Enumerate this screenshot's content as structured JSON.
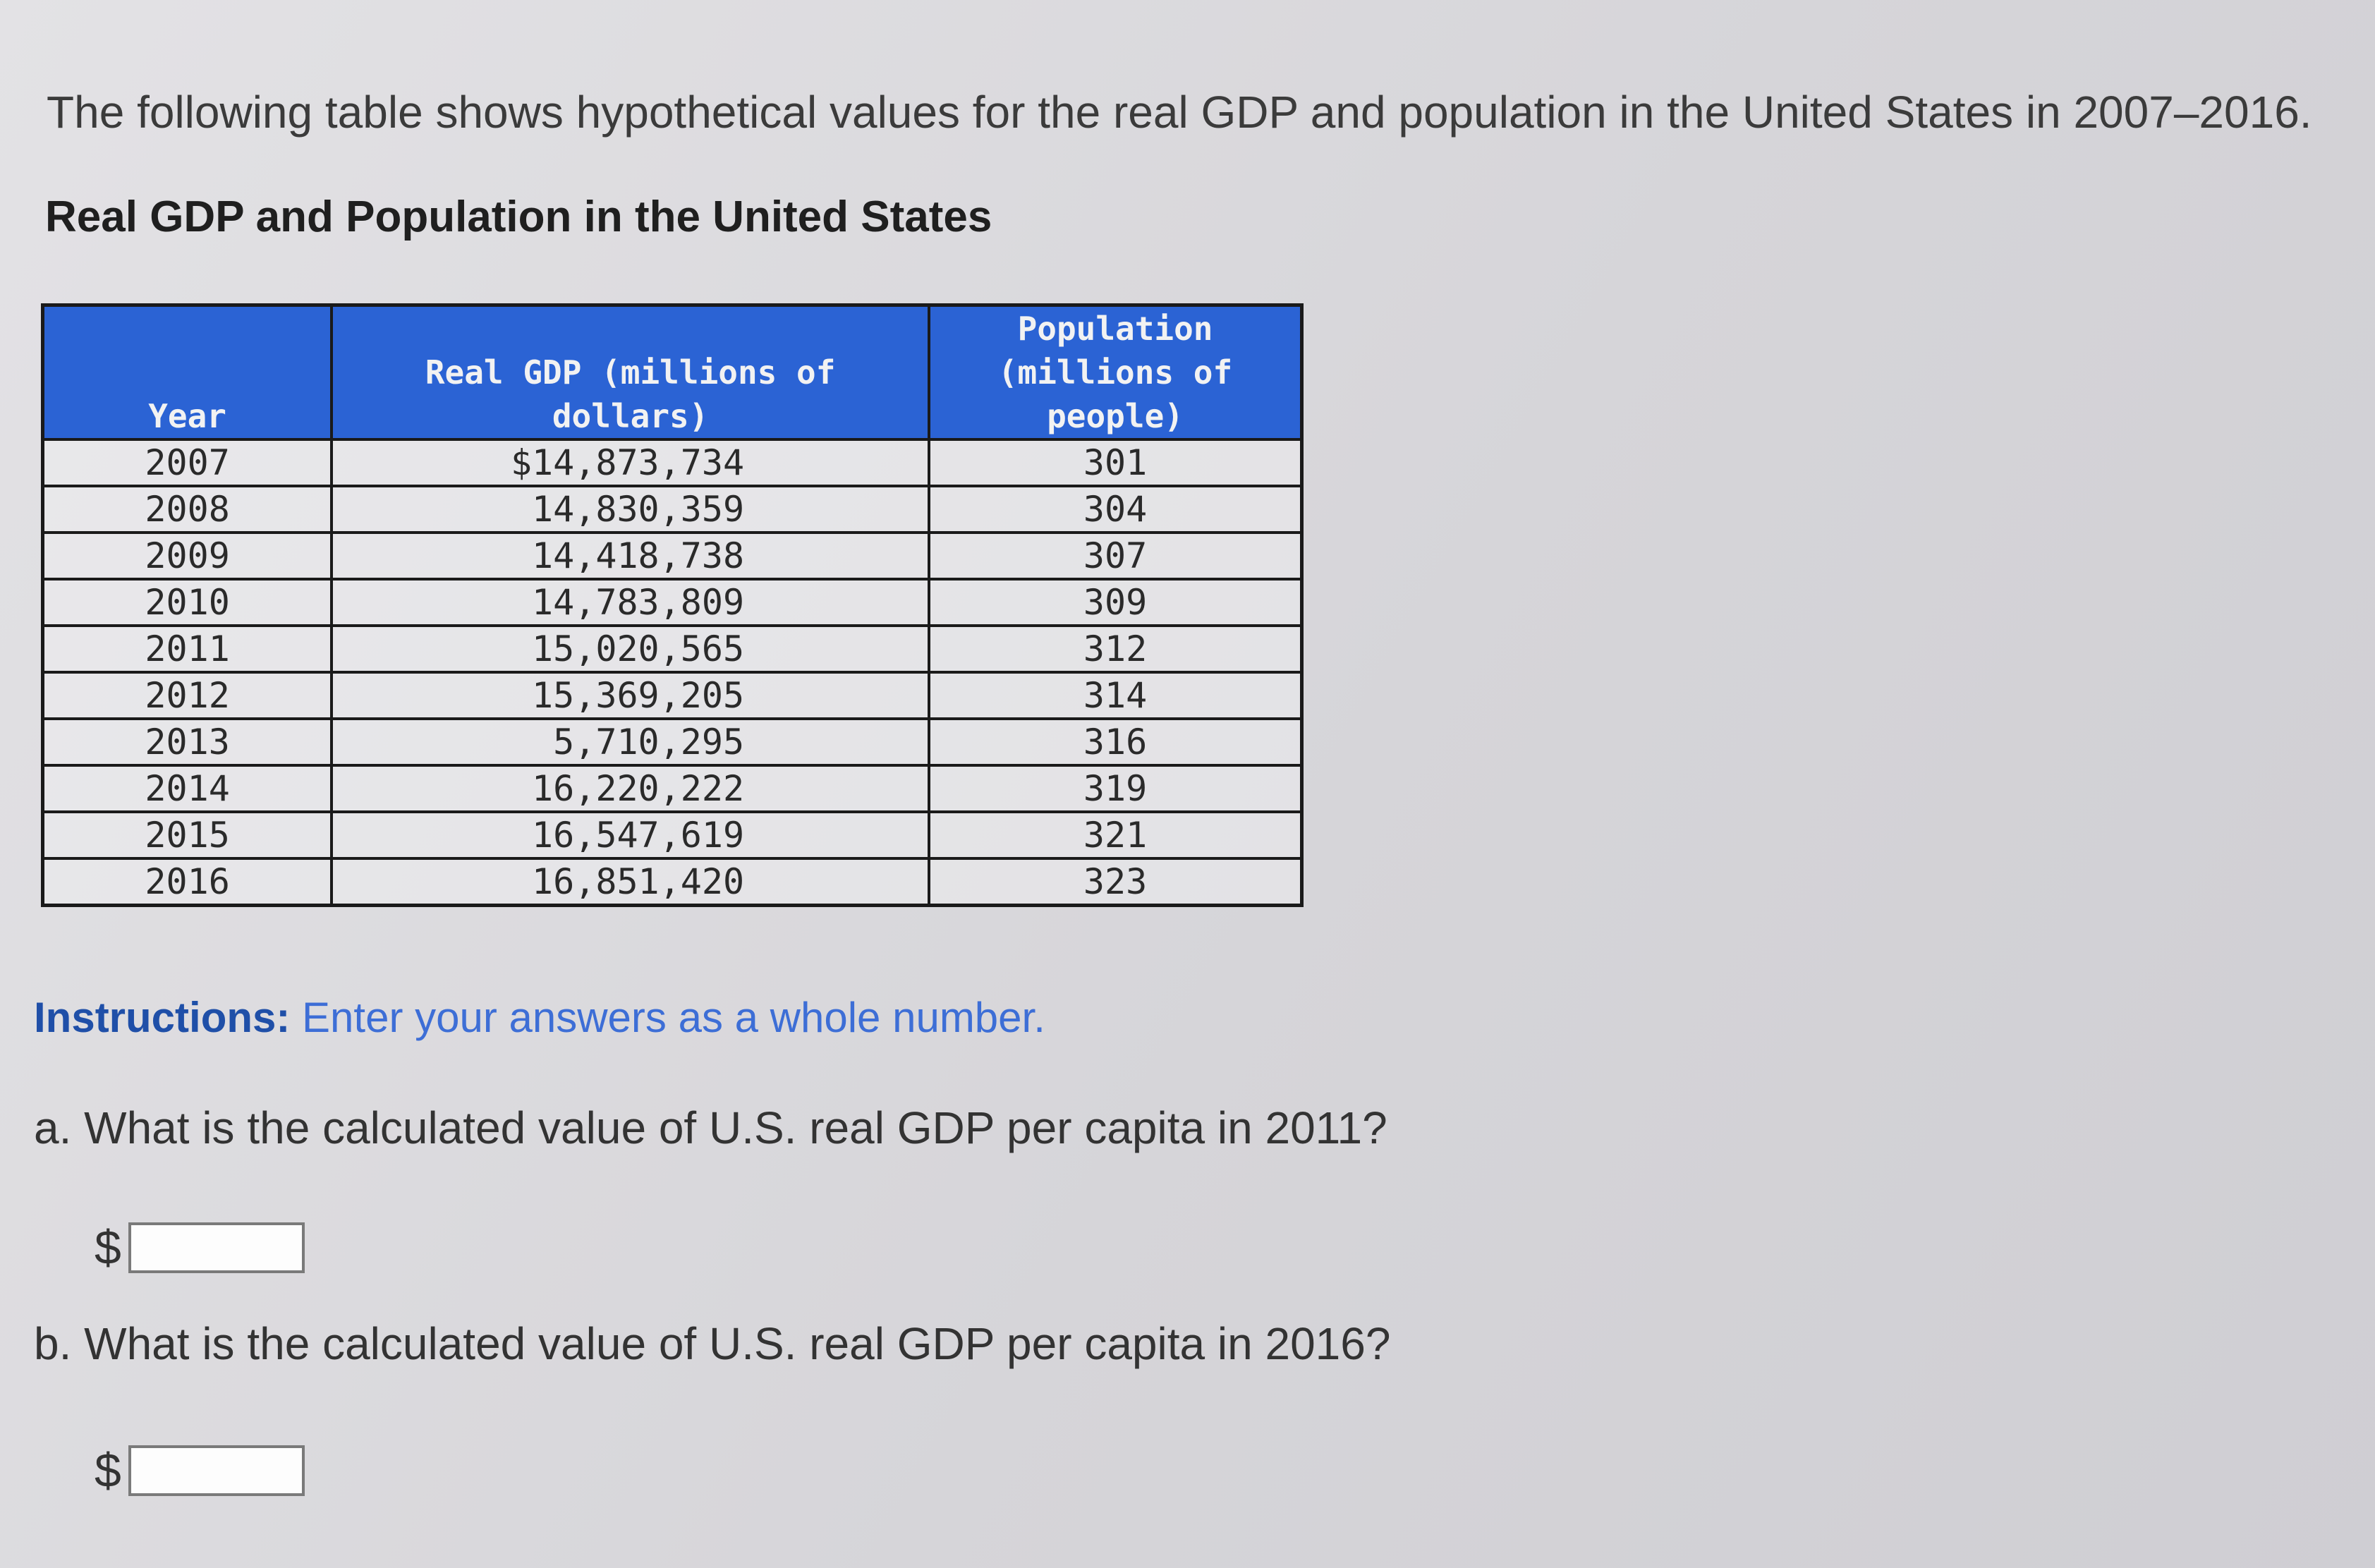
{
  "intro_text": "The following table shows hypothetical values for the real GDP and population in the United States in 2007–2016.",
  "table_title": "Real GDP and Population in the United States",
  "table": {
    "headers": [
      "Year",
      "Real GDP (millions of dollars)",
      "Population (millions of people)"
    ],
    "rows": [
      [
        "2007",
        "$14,873,734",
        "301"
      ],
      [
        "2008",
        "14,830,359",
        "304"
      ],
      [
        "2009",
        "14,418,738",
        "307"
      ],
      [
        "2010",
        "14,783,809",
        "309"
      ],
      [
        "2011",
        "15,020,565",
        "312"
      ],
      [
        "2012",
        "15,369,205",
        "314"
      ],
      [
        "2013",
        "5,710,295",
        "316"
      ],
      [
        "2014",
        "16,220,222",
        "319"
      ],
      [
        "2015",
        "16,547,619",
        "321"
      ],
      [
        "2016",
        "16,851,420",
        "323"
      ]
    ]
  },
  "instructions": {
    "label": "Instructions:",
    "text": "Enter your answers as a whole number."
  },
  "questions": {
    "a": {
      "text": "a. What is the calculated value of U.S. real GDP per capita in 2011?",
      "currency": "$",
      "value": ""
    },
    "b": {
      "text": "b. What is the calculated value of U.S. real GDP per capita in 2016?",
      "currency": "$",
      "value": ""
    }
  },
  "colors": {
    "header_bg": "#2b63d4",
    "instructions_label": "#1f4fa8",
    "instructions_text": "#3d6ed6"
  }
}
